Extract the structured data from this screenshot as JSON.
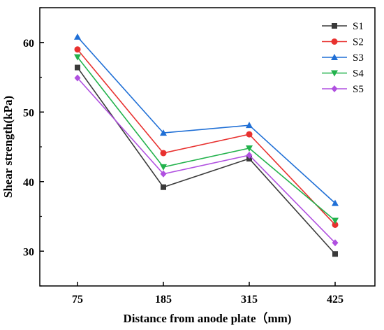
{
  "chart_data": {
    "type": "line",
    "xlabel": "Distance from anode plate（mm)",
    "ylabel": "Shear strength(kPa)",
    "categories": [
      "75",
      "185",
      "315",
      "425"
    ],
    "ylim": [
      25,
      65
    ],
    "yticks": [
      30,
      40,
      50,
      60
    ],
    "grid": false,
    "legend_position": "top-right",
    "series": [
      {
        "name": "S1",
        "color": "#3a3a3a",
        "marker": "square",
        "values": [
          56.4,
          39.2,
          43.3,
          29.6
        ]
      },
      {
        "name": "S2",
        "color": "#e8312f",
        "marker": "circle",
        "values": [
          59.0,
          44.1,
          46.8,
          33.8
        ]
      },
      {
        "name": "S3",
        "color": "#1f6fd6",
        "marker": "triangle-up",
        "values": [
          60.8,
          47.0,
          48.1,
          36.9
        ]
      },
      {
        "name": "S4",
        "color": "#22b24c",
        "marker": "triangle-down",
        "values": [
          57.9,
          42.1,
          44.8,
          34.4
        ]
      },
      {
        "name": "S5",
        "color": "#b050e0",
        "marker": "diamond",
        "values": [
          54.9,
          41.1,
          43.8,
          31.2
        ]
      }
    ]
  }
}
